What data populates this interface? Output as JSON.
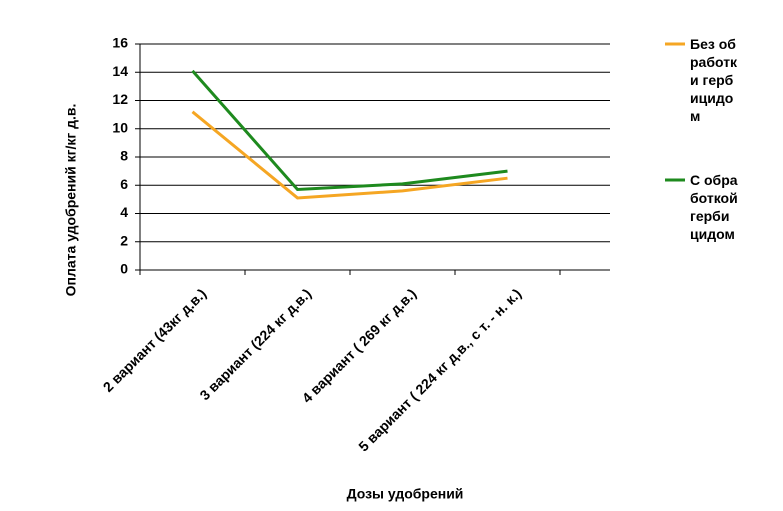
{
  "chart_data": {
    "type": "line",
    "y_label": "Оплата удобрений кг/кг д.в.",
    "x_label": "Дозы удобрений",
    "categories": [
      "2 вариант (43кг д.в.)",
      "3 вариант (224 кг д.в.)",
      "4 вариант ( 269 кг д.в.)",
      "5 вариант ( 224 кг д.в., с т. - н. к.)"
    ],
    "series": [
      {
        "name": "Без обработки гербицидом",
        "color": "#f5a623",
        "values": [
          11.2,
          5.1,
          5.6,
          6.5
        ]
      },
      {
        "name": "С обработкой гербицидом",
        "color": "#1e8a1e",
        "values": [
          14.1,
          5.7,
          6.1,
          7.0
        ]
      }
    ],
    "ylim": [
      0,
      16
    ],
    "yticks": [
      0,
      2,
      4,
      6,
      8,
      10,
      12,
      14,
      16
    ],
    "grid": true,
    "legend": "right"
  }
}
